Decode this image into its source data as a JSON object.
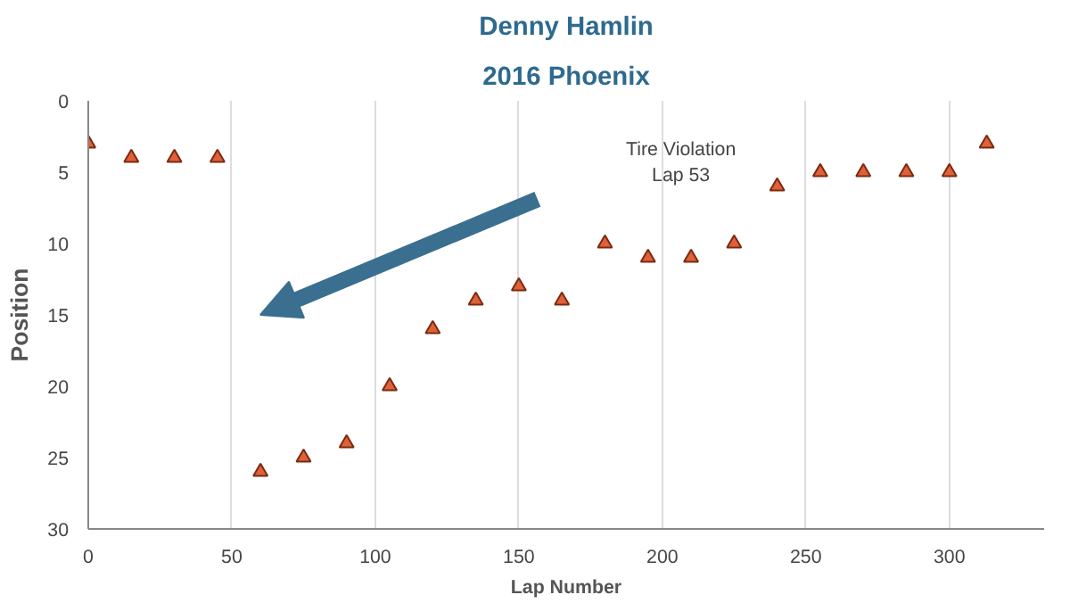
{
  "chart_data": {
    "type": "scatter",
    "title": "Denny Hamlin",
    "subtitle": "2016 Phoenix",
    "xlabel": "Lap Number",
    "ylabel": "Position",
    "x": [
      0,
      15,
      30,
      45,
      60,
      75,
      90,
      105,
      120,
      135,
      150,
      165,
      180,
      195,
      210,
      225,
      240,
      255,
      270,
      285,
      300,
      313
    ],
    "series": [
      {
        "color": "#e0603a",
        "values": [
          3,
          4,
          4,
          4,
          26,
          25,
          24,
          20,
          16,
          14,
          13,
          14,
          10,
          11,
          11,
          10,
          6,
          5,
          5,
          5,
          5,
          3
        ]
      }
    ],
    "xlim": [
      0,
      333
    ],
    "xticks": [
      0,
      50,
      100,
      150,
      200,
      250,
      300
    ],
    "ylim": [
      30,
      0
    ],
    "yticks": [
      0,
      5,
      10,
      15,
      20,
      25,
      30
    ],
    "grid": "x",
    "marker": "triangle",
    "annotations": [
      "Tire Violation\nLap 53"
    ]
  }
}
